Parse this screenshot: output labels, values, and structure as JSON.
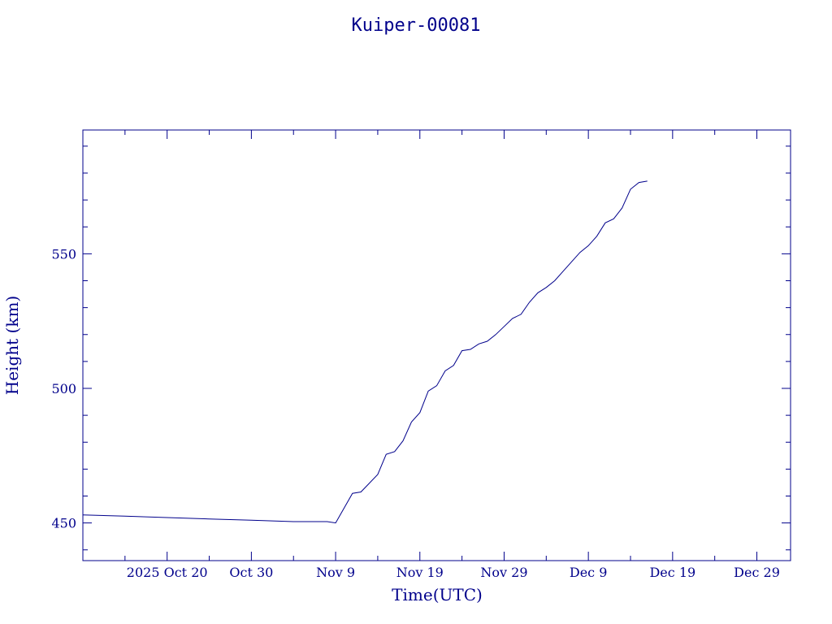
{
  "chart_data": {
    "type": "line",
    "title": "Kuiper-00081",
    "xlabel": "Time(UTC)",
    "ylabel": "Height (km)",
    "x_ticks": [
      "2025 Oct 20",
      "Oct 30",
      "Nov  9",
      "Nov 19",
      "Nov 29",
      "Dec  9",
      "Dec 19",
      "Dec 29"
    ],
    "y_ticks": [
      450,
      500,
      550
    ],
    "xlim": [
      "2025-10-10",
      "2026-01-02"
    ],
    "ylim": [
      436,
      596
    ],
    "grid": false,
    "legend": "none",
    "colors": {
      "ink": "#00008b"
    },
    "series": [
      {
        "x": [
          "2025-10-10",
          "2025-10-15",
          "2025-10-20",
          "2025-10-25",
          "2025-10-30",
          "2025-11-04",
          "2025-11-08",
          "2025-11-09",
          "2025-11-11",
          "2025-11-12",
          "2025-11-14",
          "2025-11-15",
          "2025-11-16",
          "2025-11-17",
          "2025-11-18",
          "2025-11-19",
          "2025-11-20",
          "2025-11-21",
          "2025-11-22",
          "2025-11-23",
          "2025-11-24",
          "2025-11-25",
          "2025-11-26",
          "2025-11-27",
          "2025-11-28",
          "2025-11-29",
          "2025-11-30",
          "2025-12-01",
          "2025-12-02",
          "2025-12-03",
          "2025-12-04",
          "2025-12-05",
          "2025-12-06",
          "2025-12-07",
          "2025-12-08",
          "2025-12-09",
          "2025-12-10",
          "2025-12-11",
          "2025-12-12",
          "2025-12-13",
          "2025-12-14",
          "2025-12-15",
          "2025-12-16"
        ],
        "y": [
          453,
          452.5,
          452,
          451.5,
          451,
          450.5,
          450.5,
          450,
          461,
          461.5,
          468,
          475.5,
          476.5,
          480.5,
          487.5,
          491,
          499,
          501,
          506.5,
          508.5,
          514,
          514.5,
          516.5,
          517.5,
          520,
          523,
          526,
          527.5,
          532,
          535.5,
          537.5,
          540,
          543.5,
          547,
          550.5,
          553,
          556.5,
          561.5,
          563,
          567,
          574,
          576.5,
          577
        ]
      }
    ]
  }
}
